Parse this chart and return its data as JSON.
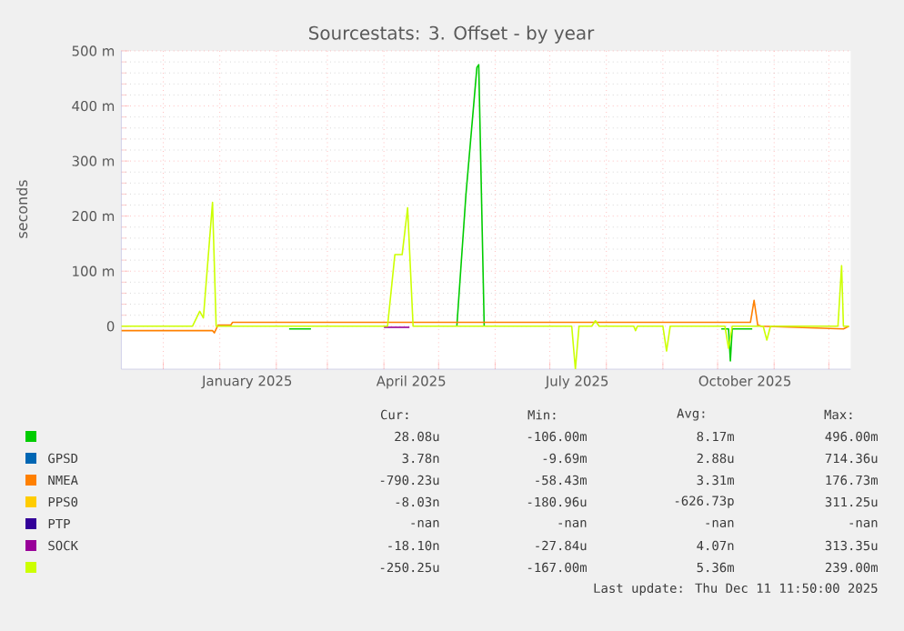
{
  "chart_data": {
    "type": "line",
    "title": "Sourcestats: 3. Offset - by year",
    "ylabel": "seconds",
    "xlim": [
      "2024-11-08",
      "2025-12-13"
    ],
    "ylim": [
      -78,
      500
    ],
    "yticks": [
      0,
      {
        "value": 100,
        "label": "100 m"
      },
      {
        "value": 200,
        "label": "200 m"
      },
      {
        "value": 300,
        "label": "300 m"
      },
      {
        "value": 400,
        "label": "400 m"
      },
      {
        "value": 500,
        "label": "500 m"
      }
    ],
    "xticks": [
      {
        "value": "2024-12-01",
        "label": null
      },
      {
        "value": "2025-01-01",
        "label": null
      },
      {
        "value": "2025-02-01",
        "label": null
      },
      {
        "value": "2025-03-01",
        "label": null
      },
      {
        "value": "2025-04-01",
        "label": null
      },
      {
        "value": "2025-05-01",
        "label": null
      },
      {
        "value": "2025-06-01",
        "label": null
      },
      {
        "value": "2025-07-01",
        "label": null
      },
      {
        "value": "2025-08-01",
        "label": null
      },
      {
        "value": "2025-09-01",
        "label": null
      },
      {
        "value": "2025-10-01",
        "label": null
      },
      {
        "value": "2025-11-01",
        "label": null
      },
      {
        "value": "2025-12-01",
        "label": null
      },
      {
        "value": "2025-01-16",
        "label": "January 2025"
      },
      {
        "value": "2025-04-16",
        "label": "April 2025"
      },
      {
        "value": "2025-07-16",
        "label": "July 2025"
      },
      {
        "value": "2025-10-16",
        "label": "October 2025"
      }
    ],
    "grid": true,
    "legend": "bottom",
    "series": [
      {
        "color": "#00cc00",
        "x": [
          "2025-02-08",
          "2025-02-20",
          "2025-03-01",
          "2025-05-11",
          "2025-05-16",
          "2025-05-22",
          "2025-05-23",
          "2025-05-26",
          "2025-06-10",
          "2025-10-03",
          "2025-10-07",
          "2025-10-08",
          "2025-10-09",
          "2025-10-20"
        ],
        "values": [
          -5,
          -5,
          null,
          0,
          240,
          470,
          475,
          0,
          null,
          -5,
          -5,
          -63,
          -5,
          -5
        ]
      },
      {
        "name": "GPSD",
        "color": "#0066b3"
      },
      {
        "name": "NMEA",
        "color": "#ff8000",
        "x": [
          "2024-11-08",
          "2024-12-28",
          "2024-12-29",
          "2024-12-31",
          "2025-01-07",
          "2025-01-08",
          "2025-10-19",
          "2025-10-21",
          "2025-10-23",
          "2025-10-25",
          "2025-12-09",
          "2025-12-12"
        ],
        "values": [
          -8,
          -8,
          -12,
          2,
          2,
          7,
          7,
          47,
          2,
          0,
          -5,
          0
        ]
      },
      {
        "name": "PPS0",
        "color": "#ffcc00"
      },
      {
        "name": "PTP",
        "color": "#330099"
      },
      {
        "name": "SOCK",
        "color": "#990099",
        "x": [
          "2025-04-01",
          "2025-04-15"
        ],
        "values": [
          -2,
          -2
        ]
      },
      {
        "color": "#ccff00",
        "x": [
          "2024-11-08",
          "2024-12-17",
          "2024-12-21",
          "2024-12-23",
          "2024-12-28",
          "2024-12-30",
          "2025-04-03",
          "2025-04-07",
          "2025-04-11",
          "2025-04-14",
          "2025-04-17",
          "2025-07-13",
          "2025-07-15",
          "2025-07-17",
          "2025-07-24",
          "2025-07-26",
          "2025-07-28",
          "2025-08-16",
          "2025-08-17",
          "2025-08-18",
          "2025-09-01",
          "2025-09-03",
          "2025-09-05",
          "2025-10-05",
          "2025-10-07",
          "2025-10-09",
          "2025-10-26",
          "2025-10-28",
          "2025-10-30",
          "2025-12-06",
          "2025-12-08",
          "2025-12-09",
          "2025-12-12"
        ],
        "values": [
          0,
          0,
          27,
          15,
          225,
          0,
          0,
          130,
          130,
          215,
          0,
          0,
          -78,
          0,
          0,
          10,
          0,
          0,
          -8,
          0,
          0,
          -45,
          0,
          0,
          -40,
          0,
          0,
          -25,
          0,
          0,
          110,
          0,
          0
        ]
      }
    ],
    "annotations": [
      "Cur:",
      "Min:",
      "Avg:",
      "Max:",
      "28.08u",
      "-106.00m",
      "8.17m",
      "496.00m",
      "3.78n",
      "-9.69m",
      "2.88u",
      "714.36u",
      "-790.23u",
      "-58.43m",
      "3.31m",
      "176.73m",
      "-8.03n",
      "-180.96u",
      "-626.73p",
      "311.25u",
      "-nan",
      "-nan",
      "-nan",
      "-nan",
      "-18.10n",
      "-27.84u",
      "4.07n",
      "313.35u",
      "-250.25u",
      "-167.00m",
      "5.36m",
      "239.00m",
      "Last update: Thu Dec 11 11:50:00 2025"
    ]
  }
}
